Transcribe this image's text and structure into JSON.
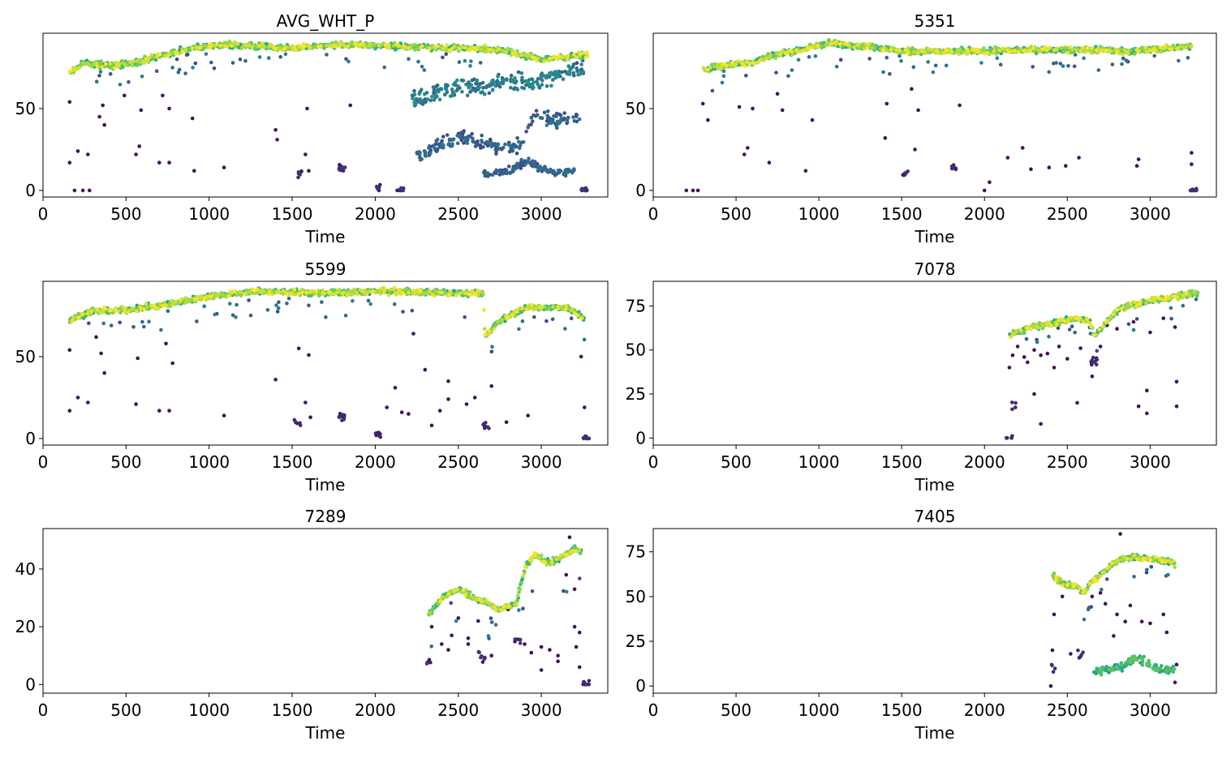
{
  "colormap": [
    "#440154",
    "#414487",
    "#2a788e",
    "#22a884",
    "#7ad151",
    "#fde725"
  ],
  "chart_data": [
    {
      "type": "scatter",
      "title": "AVG_WHT_P",
      "xlabel": "Time",
      "ylabel": "",
      "xlim": [
        0,
        3400
      ],
      "ylim": [
        -4,
        96
      ],
      "xticks": [
        0,
        500,
        1000,
        1500,
        2000,
        2500,
        3000
      ],
      "yticks": [
        0,
        50
      ],
      "trend": [
        [
          160,
          72
        ],
        [
          250,
          78
        ],
        [
          400,
          76
        ],
        [
          550,
          78
        ],
        [
          700,
          82
        ],
        [
          900,
          87
        ],
        [
          1100,
          89
        ],
        [
          1500,
          87
        ],
        [
          1800,
          89
        ],
        [
          2100,
          88
        ],
        [
          2500,
          87
        ],
        [
          2750,
          86
        ],
        [
          3000,
          80
        ],
        [
          3280,
          83
        ]
      ],
      "lowers": [
        {
          "pts": [
            [
              2220,
              55
            ],
            [
              2400,
              60
            ],
            [
              2550,
              65
            ],
            [
              2660,
              62
            ],
            [
              2760,
              66
            ],
            [
              2900,
              65
            ],
            [
              3100,
              70
            ],
            [
              3260,
              74
            ]
          ],
          "spread": 6,
          "n": 240,
          "w": 0.3
        },
        {
          "pts": [
            [
              2250,
              20
            ],
            [
              2400,
              28
            ],
            [
              2500,
              33
            ],
            [
              2620,
              30
            ],
            [
              2750,
              26
            ],
            [
              2880,
              28
            ],
            [
              2950,
              45
            ],
            [
              3100,
              42
            ],
            [
              3230,
              45
            ]
          ],
          "spread": 5,
          "n": 200,
          "w": 0.2
        },
        {
          "pts": [
            [
              2650,
              10
            ],
            [
              2800,
              12
            ],
            [
              2920,
              18
            ],
            [
              3000,
              14
            ],
            [
              3100,
              10
            ],
            [
              3200,
              12
            ]
          ],
          "spread": 3,
          "n": 130,
          "w": 0.18
        }
      ],
      "clusters": [
        [
          1800,
          14,
          14
        ],
        [
          2025,
          2,
          8
        ],
        [
          2150,
          0,
          10
        ],
        [
          3260,
          0,
          22
        ],
        [
          1540,
          10,
          6
        ]
      ],
      "points": [
        [
          160,
          54
        ],
        [
          160,
          17
        ],
        [
          190,
          0
        ],
        [
          210,
          24
        ],
        [
          240,
          0
        ],
        [
          270,
          22
        ],
        [
          280,
          0
        ],
        [
          340,
          45
        ],
        [
          370,
          40
        ],
        [
          360,
          52
        ],
        [
          490,
          58
        ],
        [
          560,
          22
        ],
        [
          580,
          27
        ],
        [
          590,
          49
        ],
        [
          700,
          17
        ],
        [
          720,
          58
        ],
        [
          760,
          17
        ],
        [
          760,
          50
        ],
        [
          900,
          44
        ],
        [
          910,
          12
        ],
        [
          1090,
          14
        ],
        [
          1400,
          37
        ],
        [
          1410,
          31
        ],
        [
          1580,
          22
        ],
        [
          1590,
          50
        ],
        [
          1600,
          12
        ],
        [
          1850,
          52
        ],
        [
          2150,
          0
        ]
      ]
    },
    {
      "type": "scatter",
      "title": "5351",
      "xlabel": "Time",
      "ylabel": "",
      "xlim": [
        0,
        3400
      ],
      "ylim": [
        -4,
        96
      ],
      "xticks": [
        0,
        500,
        1000,
        1500,
        2000,
        2500,
        3000
      ],
      "yticks": [
        0,
        50
      ],
      "trend": [
        [
          300,
          74
        ],
        [
          450,
          77
        ],
        [
          600,
          78
        ],
        [
          700,
          82
        ],
        [
          900,
          86
        ],
        [
          1050,
          90
        ],
        [
          1300,
          88
        ],
        [
          1500,
          85
        ],
        [
          1750,
          85
        ],
        [
          2000,
          85
        ],
        [
          2300,
          86
        ],
        [
          2600,
          86
        ],
        [
          2900,
          85
        ],
        [
          3250,
          88
        ]
      ],
      "lowers": [],
      "clusters": [
        [
          1820,
          14,
          10
        ],
        [
          1520,
          11,
          6
        ],
        [
          3260,
          0,
          14
        ]
      ],
      "points": [
        [
          200,
          0
        ],
        [
          240,
          0
        ],
        [
          270,
          0
        ],
        [
          300,
          53
        ],
        [
          330,
          43
        ],
        [
          520,
          51
        ],
        [
          550,
          22
        ],
        [
          570,
          26
        ],
        [
          600,
          50
        ],
        [
          700,
          17
        ],
        [
          750,
          59
        ],
        [
          780,
          49
        ],
        [
          920,
          12
        ],
        [
          960,
          43
        ],
        [
          1400,
          32
        ],
        [
          1410,
          53
        ],
        [
          1560,
          62
        ],
        [
          1580,
          25
        ],
        [
          1600,
          49
        ],
        [
          1850,
          52
        ],
        [
          2000,
          0
        ],
        [
          2030,
          5
        ],
        [
          2140,
          20
        ],
        [
          2230,
          26
        ],
        [
          2280,
          13
        ],
        [
          2390,
          14
        ],
        [
          2490,
          15
        ],
        [
          2570,
          20
        ],
        [
          2920,
          15
        ],
        [
          2930,
          19
        ],
        [
          3250,
          23
        ],
        [
          3250,
          16
        ]
      ]
    },
    {
      "type": "scatter",
      "title": "5599",
      "xlabel": "Time",
      "ylabel": "",
      "xlim": [
        0,
        3400
      ],
      "ylim": [
        -4,
        96
      ],
      "xticks": [
        0,
        500,
        1000,
        1500,
        2000,
        2500,
        3000
      ],
      "yticks": [
        0,
        50
      ],
      "trend": [
        [
          160,
          72
        ],
        [
          300,
          78
        ],
        [
          450,
          78
        ],
        [
          700,
          81
        ],
        [
          1000,
          87
        ],
        [
          1300,
          90
        ],
        [
          1600,
          89
        ],
        [
          1800,
          89
        ],
        [
          2100,
          90
        ],
        [
          2400,
          89
        ],
        [
          2650,
          89
        ],
        [
          2660,
          62
        ],
        [
          2750,
          72
        ],
        [
          2900,
          80
        ],
        [
          3150,
          80
        ],
        [
          3260,
          73
        ]
      ],
      "lowers": [],
      "clusters": [
        [
          1800,
          13,
          12
        ],
        [
          2020,
          3,
          8
        ],
        [
          2670,
          8,
          8
        ],
        [
          1530,
          10,
          6
        ],
        [
          3270,
          0,
          10
        ]
      ],
      "points": [
        [
          160,
          54
        ],
        [
          160,
          17
        ],
        [
          210,
          25
        ],
        [
          270,
          22
        ],
        [
          320,
          62
        ],
        [
          350,
          52
        ],
        [
          370,
          40
        ],
        [
          560,
          21
        ],
        [
          570,
          49
        ],
        [
          700,
          17
        ],
        [
          740,
          58
        ],
        [
          760,
          17
        ],
        [
          780,
          46
        ],
        [
          1090,
          14
        ],
        [
          1400,
          36
        ],
        [
          1540,
          55
        ],
        [
          1580,
          22
        ],
        [
          1600,
          51
        ],
        [
          1610,
          13
        ],
        [
          2070,
          19
        ],
        [
          2120,
          31
        ],
        [
          2160,
          16
        ],
        [
          2200,
          15
        ],
        [
          2230,
          64
        ],
        [
          2300,
          42
        ],
        [
          2340,
          8
        ],
        [
          2390,
          17
        ],
        [
          2440,
          24
        ],
        [
          2440,
          35
        ],
        [
          2550,
          21
        ],
        [
          2600,
          25
        ],
        [
          2700,
          32
        ],
        [
          2790,
          10
        ],
        [
          2920,
          14
        ],
        [
          3240,
          50
        ],
        [
          3260,
          19
        ]
      ]
    },
    {
      "type": "scatter",
      "title": "7078",
      "xlabel": "Time",
      "ylabel": "",
      "xlim": [
        0,
        3400
      ],
      "ylim": [
        -4,
        89
      ],
      "xticks": [
        0,
        500,
        1000,
        1500,
        2000,
        2500,
        3000
      ],
      "yticks": [
        0,
        25,
        50,
        75
      ],
      "trend": [
        [
          2150,
          58
        ],
        [
          2250,
          62
        ],
        [
          2400,
          65
        ],
        [
          2550,
          68
        ],
        [
          2640,
          66
        ],
        [
          2660,
          58
        ],
        [
          2720,
          64
        ],
        [
          2820,
          74
        ],
        [
          3000,
          78
        ],
        [
          3200,
          81
        ],
        [
          3290,
          83
        ]
      ],
      "lowers": [],
      "clusters": [
        [
          2150,
          0,
          6
        ],
        [
          2660,
          44,
          12
        ],
        [
          2180,
          18,
          4
        ]
      ],
      "points": [
        [
          2150,
          40
        ],
        [
          2170,
          47
        ],
        [
          2200,
          52
        ],
        [
          2240,
          46
        ],
        [
          2260,
          43
        ],
        [
          2300,
          50
        ],
        [
          2340,
          47
        ],
        [
          2300,
          25
        ],
        [
          2340,
          8
        ],
        [
          2380,
          48
        ],
        [
          2420,
          40
        ],
        [
          2450,
          52
        ],
        [
          2500,
          45
        ],
        [
          2560,
          20
        ],
        [
          2580,
          51
        ],
        [
          2650,
          35
        ],
        [
          2700,
          52
        ],
        [
          2740,
          64
        ],
        [
          2800,
          62
        ],
        [
          2900,
          66
        ],
        [
          2930,
          18
        ],
        [
          2980,
          27
        ],
        [
          2980,
          14
        ],
        [
          3000,
          60
        ],
        [
          3080,
          68
        ],
        [
          3150,
          63
        ],
        [
          3160,
          18
        ],
        [
          3160,
          32
        ]
      ]
    },
    {
      "type": "scatter",
      "title": "7289",
      "xlabel": "Time",
      "ylabel": "",
      "xlim": [
        0,
        3400
      ],
      "ylim": [
        -3,
        54
      ],
      "xticks": [
        0,
        500,
        1000,
        1500,
        2000,
        2500,
        3000
      ],
      "yticks": [
        0,
        20,
        40
      ],
      "trend": [
        [
          2320,
          24
        ],
        [
          2400,
          30
        ],
        [
          2500,
          33
        ],
        [
          2600,
          30
        ],
        [
          2680,
          28
        ],
        [
          2740,
          26
        ],
        [
          2850,
          28
        ],
        [
          2900,
          40
        ],
        [
          2960,
          45
        ],
        [
          3050,
          42
        ],
        [
          3120,
          44
        ],
        [
          3200,
          47
        ],
        [
          3240,
          46
        ]
      ],
      "lowers": [],
      "clusters": [
        [
          2330,
          7,
          4
        ],
        [
          2640,
          9,
          8
        ],
        [
          2860,
          16,
          6
        ],
        [
          3270,
          0,
          14
        ]
      ],
      "points": [
        [
          2340,
          20
        ],
        [
          2400,
          14
        ],
        [
          2440,
          12
        ],
        [
          2460,
          17
        ],
        [
          2500,
          23
        ],
        [
          2560,
          16
        ],
        [
          2560,
          14
        ],
        [
          2620,
          22
        ],
        [
          2700,
          10
        ],
        [
          2800,
          26
        ],
        [
          2900,
          14
        ],
        [
          2940,
          11
        ],
        [
          3000,
          13
        ],
        [
          3000,
          5
        ],
        [
          3050,
          12
        ],
        [
          3100,
          8
        ],
        [
          3100,
          10
        ],
        [
          3150,
          38
        ],
        [
          3200,
          20
        ],
        [
          3210,
          13
        ],
        [
          3230,
          6
        ],
        [
          3230,
          18
        ],
        [
          3200,
          33
        ],
        [
          3170,
          51
        ]
      ]
    },
    {
      "type": "scatter",
      "title": "7405",
      "xlabel": "Time",
      "ylabel": "",
      "xlim": [
        0,
        3400
      ],
      "ylim": [
        -4,
        88
      ],
      "xticks": [
        0,
        500,
        1000,
        1500,
        2000,
        2500,
        3000
      ],
      "yticks": [
        0,
        25,
        50,
        75
      ],
      "trend": [
        [
          2410,
          62
        ],
        [
          2480,
          57
        ],
        [
          2550,
          56
        ],
        [
          2600,
          52
        ],
        [
          2640,
          58
        ],
        [
          2700,
          62
        ],
        [
          2800,
          70
        ],
        [
          2900,
          72
        ],
        [
          3000,
          71
        ],
        [
          3100,
          70
        ],
        [
          3150,
          68
        ]
      ],
      "lowers": [
        {
          "pts": [
            [
              2660,
              8
            ],
            [
              2750,
              9
            ],
            [
              2850,
              12
            ],
            [
              2920,
              16
            ],
            [
              3000,
              12
            ],
            [
              3080,
              9
            ],
            [
              3150,
              10
            ]
          ],
          "spread": 3,
          "n": 130,
          "w": 0.55
        }
      ],
      "clusters": [
        [
          2420,
          10,
          4
        ],
        [
          2580,
          18,
          5
        ]
      ],
      "points": [
        [
          2400,
          0
        ],
        [
          2410,
          20
        ],
        [
          2420,
          40
        ],
        [
          2470,
          50
        ],
        [
          2520,
          18
        ],
        [
          2650,
          50
        ],
        [
          2700,
          52
        ],
        [
          2730,
          46
        ],
        [
          2780,
          28
        ],
        [
          2800,
          40
        ],
        [
          2850,
          36
        ],
        [
          2880,
          45
        ],
        [
          2950,
          36
        ],
        [
          3000,
          35
        ],
        [
          3080,
          40
        ],
        [
          3100,
          30
        ],
        [
          3150,
          2
        ],
        [
          3160,
          12
        ],
        [
          2820,
          85
        ]
      ]
    }
  ]
}
